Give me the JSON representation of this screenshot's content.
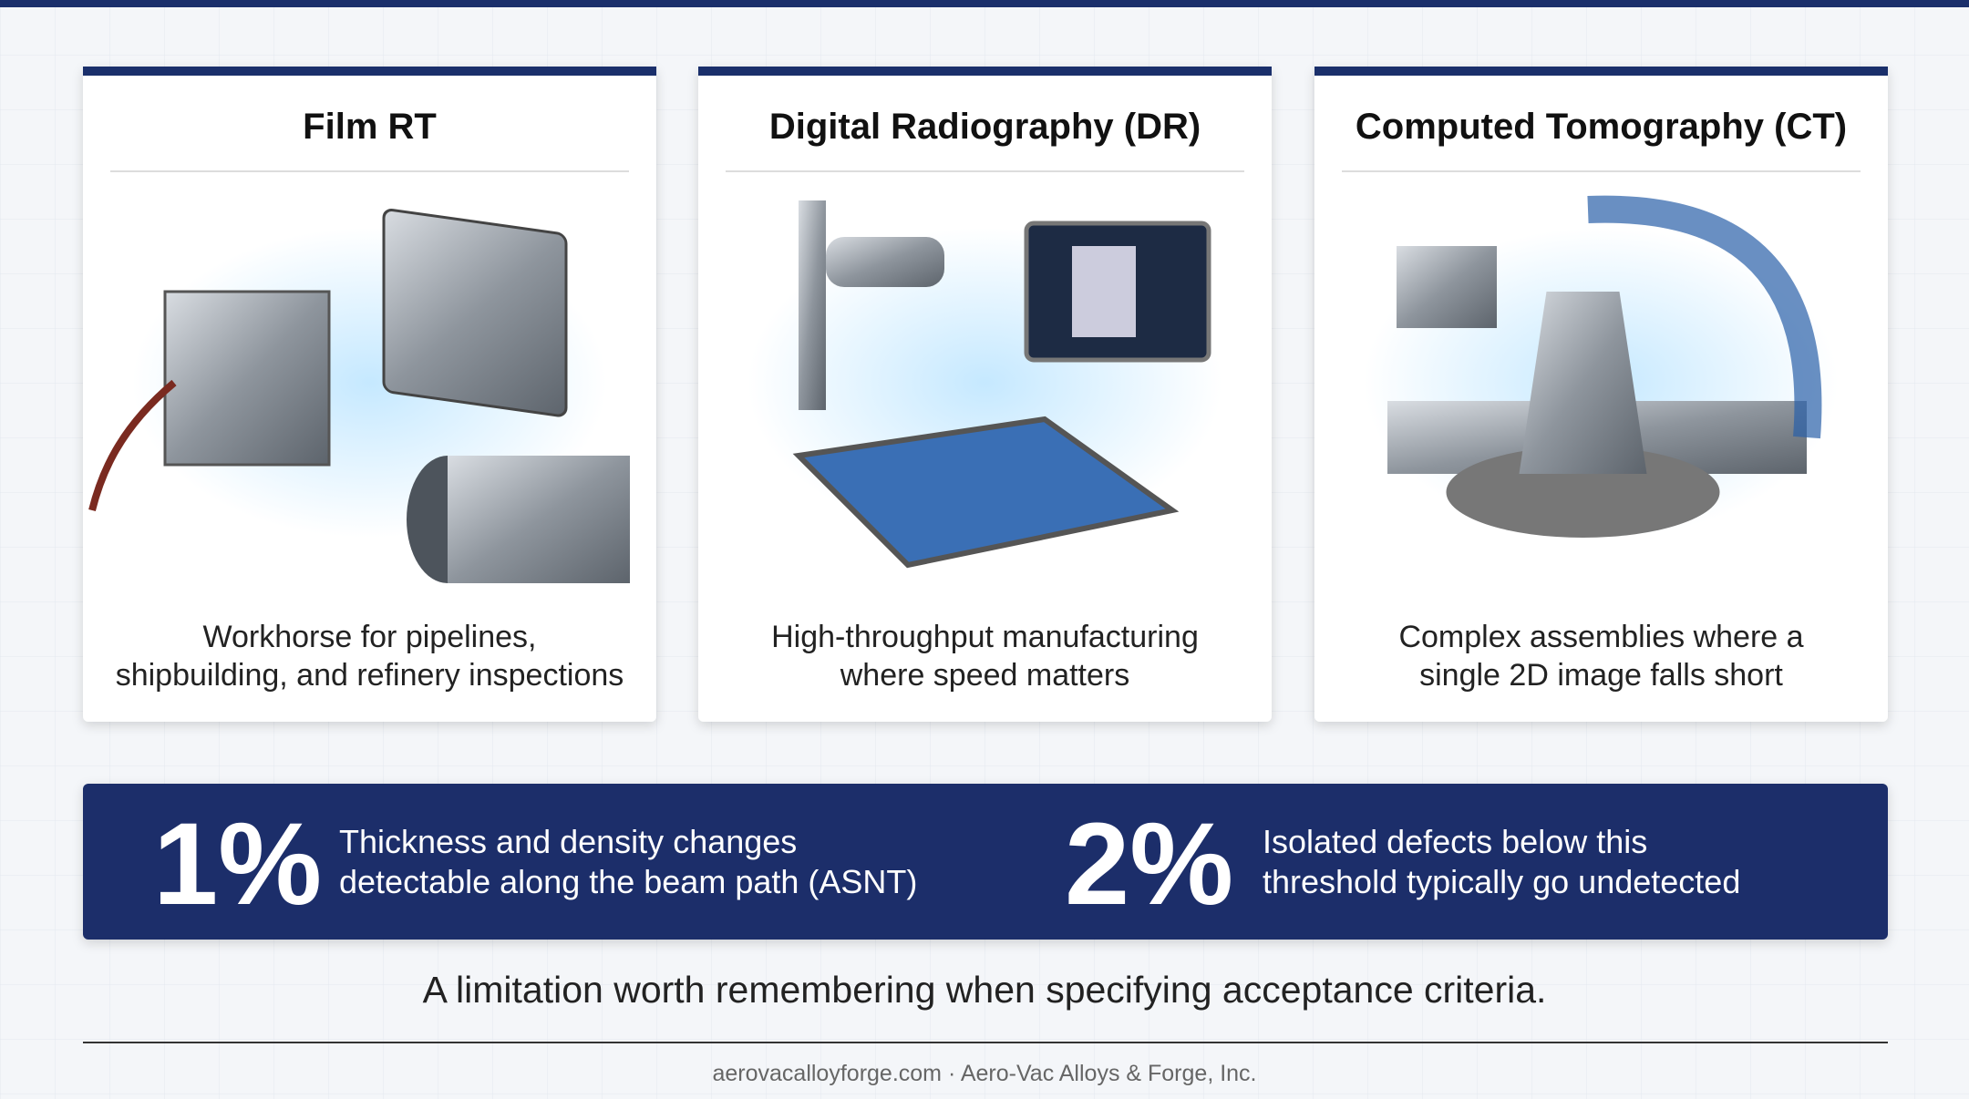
{
  "cards": [
    {
      "title": "Film RT",
      "caption": [
        "Workhorse for pipelines,",
        "shipbuilding, and refinery inspections"
      ]
    },
    {
      "title": "Digital Radiography (DR)",
      "caption": [
        "High-throughput manufacturing",
        "where speed matters"
      ]
    },
    {
      "title": "Computed Tomography (CT)",
      "caption": [
        "Complex assemblies where a",
        "single 2D image falls short"
      ]
    }
  ],
  "stats": [
    {
      "value": "1%",
      "description": [
        "Thickness and density changes",
        "detectable along the beam path (ASNT)"
      ]
    },
    {
      "value": "2%",
      "description": [
        "Isolated defects below this",
        "threshold typically go undetected"
      ]
    }
  ],
  "note": "A limitation worth remembering when specifying acceptance criteria.",
  "footer": "aerovacalloyforge.com · Aero-Vac Alloys & Forge, Inc."
}
